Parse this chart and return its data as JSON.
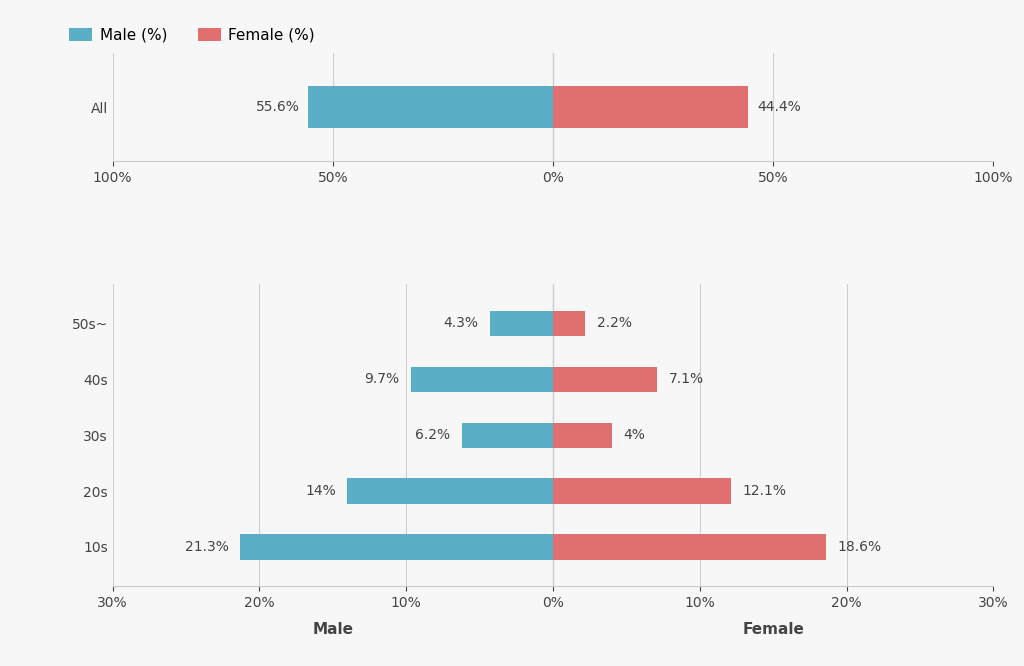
{
  "top_chart": {
    "categories": [
      "All"
    ],
    "male_values": [
      55.6
    ],
    "female_values": [
      44.4
    ],
    "male_labels": [
      "55.6%"
    ],
    "female_labels": [
      "44.4%"
    ],
    "xlim": 100,
    "xticks": [
      -100,
      -50,
      0,
      50,
      100
    ],
    "xtick_labels": [
      "100%",
      "50%",
      "0%",
      "50%",
      "100%"
    ]
  },
  "bottom_chart": {
    "categories": [
      "50s~",
      "40s",
      "30s",
      "20s",
      "10s"
    ],
    "male_values": [
      4.3,
      9.7,
      6.2,
      14.0,
      21.3
    ],
    "female_values": [
      2.2,
      7.1,
      4.0,
      12.1,
      18.6
    ],
    "male_labels": [
      "4.3%",
      "9.7%",
      "6.2%",
      "14%",
      "21.3%"
    ],
    "female_labels": [
      "2.2%",
      "7.1%",
      "4%",
      "12.1%",
      "18.6%"
    ],
    "xlim": 30,
    "xticks": [
      -30,
      -20,
      -10,
      0,
      10,
      20,
      30
    ],
    "xtick_labels": [
      "30%",
      "20%",
      "10%",
      "0%",
      "10%",
      "20%",
      "30%"
    ]
  },
  "male_color": "#5aafc7",
  "female_color": "#e07070",
  "top_bar_height": 0.55,
  "bottom_bar_height": 0.45,
  "label_fontsize": 10,
  "tick_fontsize": 10,
  "axis_label_fontsize": 11,
  "legend_fontsize": 11,
  "background_color": "#f7f7f7",
  "grid_color": "#cccccc",
  "text_color": "#444444",
  "male_label": "Male (%)",
  "female_label": "Female (%)",
  "xlabel_male": "Male",
  "xlabel_female": "Female"
}
